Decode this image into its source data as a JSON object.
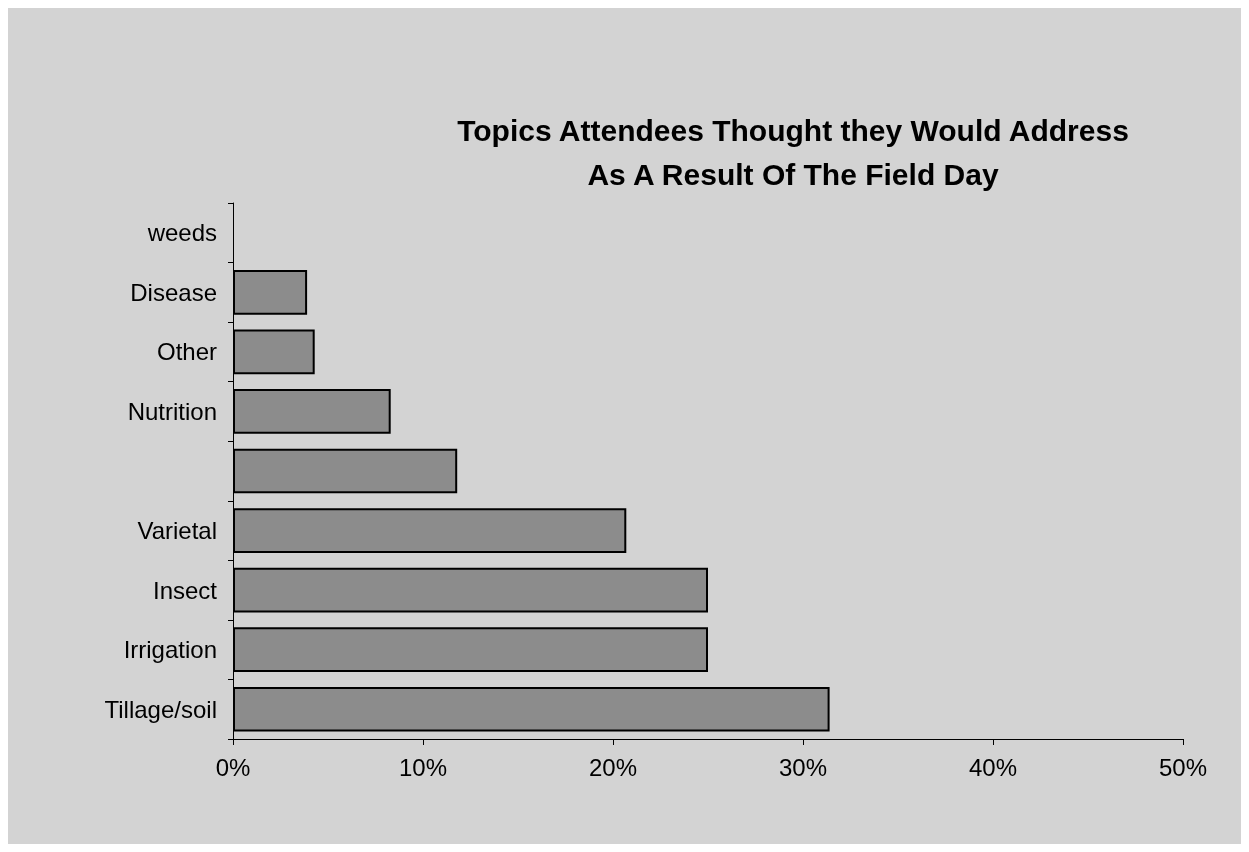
{
  "chart_data": {
    "type": "bar",
    "orientation": "horizontal",
    "title": "Topics Attendees Thought they Would Address\nAs A Result Of The Field Day",
    "categories": [
      "weeds",
      "Disease",
      "Other",
      "Nutrition",
      null,
      "Varietal",
      "Insect",
      "Irrigation",
      "Tillage/soil"
    ],
    "values": [
      0,
      3.9,
      4.3,
      8.3,
      11.8,
      20.7,
      25,
      25,
      31.4
    ],
    "color": "#8c8c8c",
    "xlim": [
      0,
      50
    ],
    "xticks": [
      {
        "value": 0,
        "label": "0%"
      },
      {
        "value": 10,
        "label": "10%"
      },
      {
        "value": 20,
        "label": "20%"
      },
      {
        "value": 30,
        "label": "30%"
      },
      {
        "value": 40,
        "label": "40%"
      },
      {
        "value": 50,
        "label": "50%"
      }
    ],
    "grid": false
  }
}
